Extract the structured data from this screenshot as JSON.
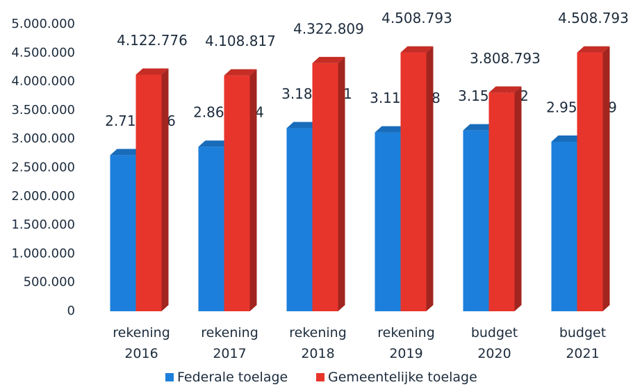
{
  "chart_data": {
    "type": "bar3d",
    "categories": [
      "rekening 2016",
      "rekening 2017",
      "rekening 2018",
      "rekening 2019",
      "budget 2020",
      "budget 2021"
    ],
    "series": [
      {
        "name": "Federale toelage",
        "color": "#1c7fdb",
        "values": [
          2719236,
          2866714,
          3189401,
          3115948,
          3151832,
          2954009
        ],
        "value_labels": [
          "2.719.236",
          "2.866.714",
          "3.189.401",
          "3.115.948",
          "3.151.832",
          "2.954.009"
        ]
      },
      {
        "name": "Gemeentelijke toelage",
        "color": "#e8352c",
        "values": [
          4122776,
          4108817,
          4322809,
          4508793,
          3808793,
          4508793
        ],
        "value_labels": [
          "4.122.776",
          "4.108.817",
          "4.322.809",
          "4.508.793",
          "3.808.793",
          "4.508.793"
        ]
      }
    ],
    "ylim": [
      0,
      5000000
    ],
    "yticks": [
      0,
      {
        "value": 500000,
        "label": "500.000"
      },
      {
        "value": 1000000,
        "label": "1.000.000"
      },
      {
        "value": 1500000,
        "label": "1.500.000"
      },
      {
        "value": 2000000,
        "label": "2.000.000"
      },
      {
        "value": 2500000,
        "label": "2.500.000"
      },
      {
        "value": 3000000,
        "label": "3.000.000"
      },
      {
        "value": 3500000,
        "label": "3.500.000"
      },
      {
        "value": 4000000,
        "label": "4.000.000"
      },
      {
        "value": 4500000,
        "label": "4.500.000"
      },
      {
        "value": 5000000,
        "label": "5.000.000"
      }
    ],
    "legend": "bottom"
  }
}
